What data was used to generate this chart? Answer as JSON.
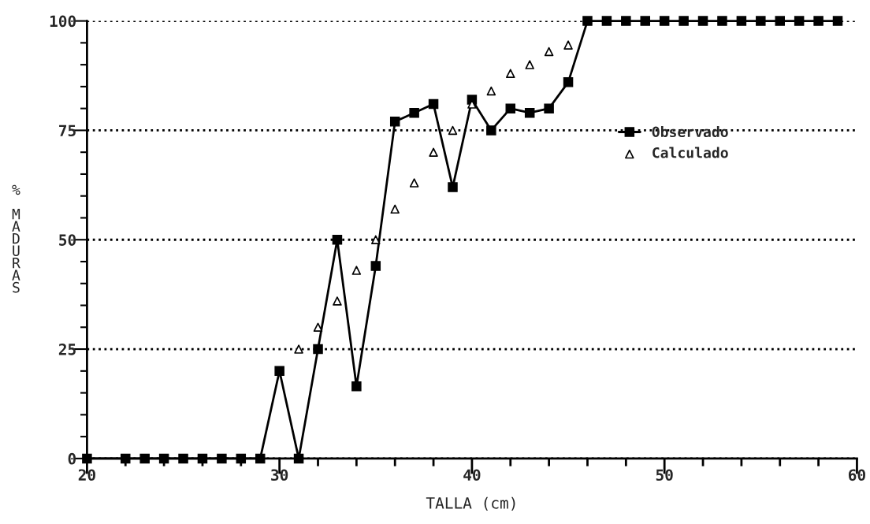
{
  "chart_data": {
    "type": "line",
    "xlabel": "TALLA (cm)",
    "ylabel": "% MADURAS",
    "series": [
      {
        "name": "Observado",
        "type": "line",
        "color": "#000000",
        "marker": "square",
        "line_style": "solid",
        "x": [
          20,
          22,
          23,
          24,
          25,
          26,
          27,
          28,
          29,
          30,
          31,
          32,
          33,
          34,
          35,
          36,
          37,
          38,
          39,
          40,
          41,
          42,
          43,
          44,
          45,
          46,
          47,
          48,
          49,
          50,
          51,
          52,
          53,
          54,
          55,
          56,
          57,
          58,
          59
        ],
        "values": [
          0,
          0,
          0,
          0,
          0,
          0,
          0,
          0,
          0,
          20,
          0,
          25,
          50,
          16.5,
          44,
          77,
          79,
          81,
          62,
          82,
          75,
          80,
          79,
          80,
          86,
          100,
          100,
          100,
          100,
          100,
          100,
          100,
          100,
          100,
          100,
          100,
          100,
          100,
          100
        ]
      },
      {
        "name": "Calculado",
        "type": "scatter",
        "color": "#000000",
        "marker": "triangle",
        "x": [
          31,
          32,
          33,
          34,
          35,
          36,
          37,
          38,
          39,
          40,
          41,
          42,
          43,
          44,
          45
        ],
        "values": [
          25,
          30,
          36,
          43,
          50,
          57,
          63,
          70,
          75,
          81,
          84,
          88,
          90,
          93,
          94.5
        ]
      }
    ],
    "xlim": [
      20,
      60
    ],
    "ylim": [
      0,
      100
    ],
    "xticks": [
      20,
      {
        "value": 22,
        "label": null
      },
      {
        "value": 24,
        "label": null
      },
      {
        "value": 26,
        "label": null
      },
      {
        "value": 28,
        "label": null
      },
      30,
      {
        "value": 32,
        "label": null
      },
      {
        "value": 34,
        "label": null
      },
      {
        "value": 36,
        "label": null
      },
      {
        "value": 38,
        "label": null
      },
      40,
      {
        "value": 42,
        "label": null
      },
      {
        "value": 44,
        "label": null
      },
      {
        "value": 46,
        "label": null
      },
      {
        "value": 48,
        "label": null
      },
      50,
      {
        "value": 52,
        "label": null
      },
      {
        "value": 54,
        "label": null
      },
      {
        "value": 56,
        "label": null
      },
      {
        "value": 58,
        "label": null
      },
      60
    ],
    "yticks": [
      0,
      {
        "value": 5,
        "label": null
      },
      {
        "value": 10,
        "label": null
      },
      {
        "value": 15,
        "label": null
      },
      {
        "value": 20,
        "label": null
      },
      25,
      {
        "value": 30,
        "label": null
      },
      {
        "value": 35,
        "label": null
      },
      {
        "value": 40,
        "label": null
      },
      {
        "value": 45,
        "label": null
      },
      50,
      {
        "value": 55,
        "label": null
      },
      {
        "value": 60,
        "label": null
      },
      {
        "value": 65,
        "label": null
      },
      {
        "value": 70,
        "label": null
      },
      75,
      {
        "value": 80,
        "label": null
      },
      {
        "value": 85,
        "label": null
      },
      {
        "value": 90,
        "label": null
      },
      {
        "value": 95,
        "label": null
      },
      100
    ],
    "grid": "y",
    "legend": "right"
  }
}
